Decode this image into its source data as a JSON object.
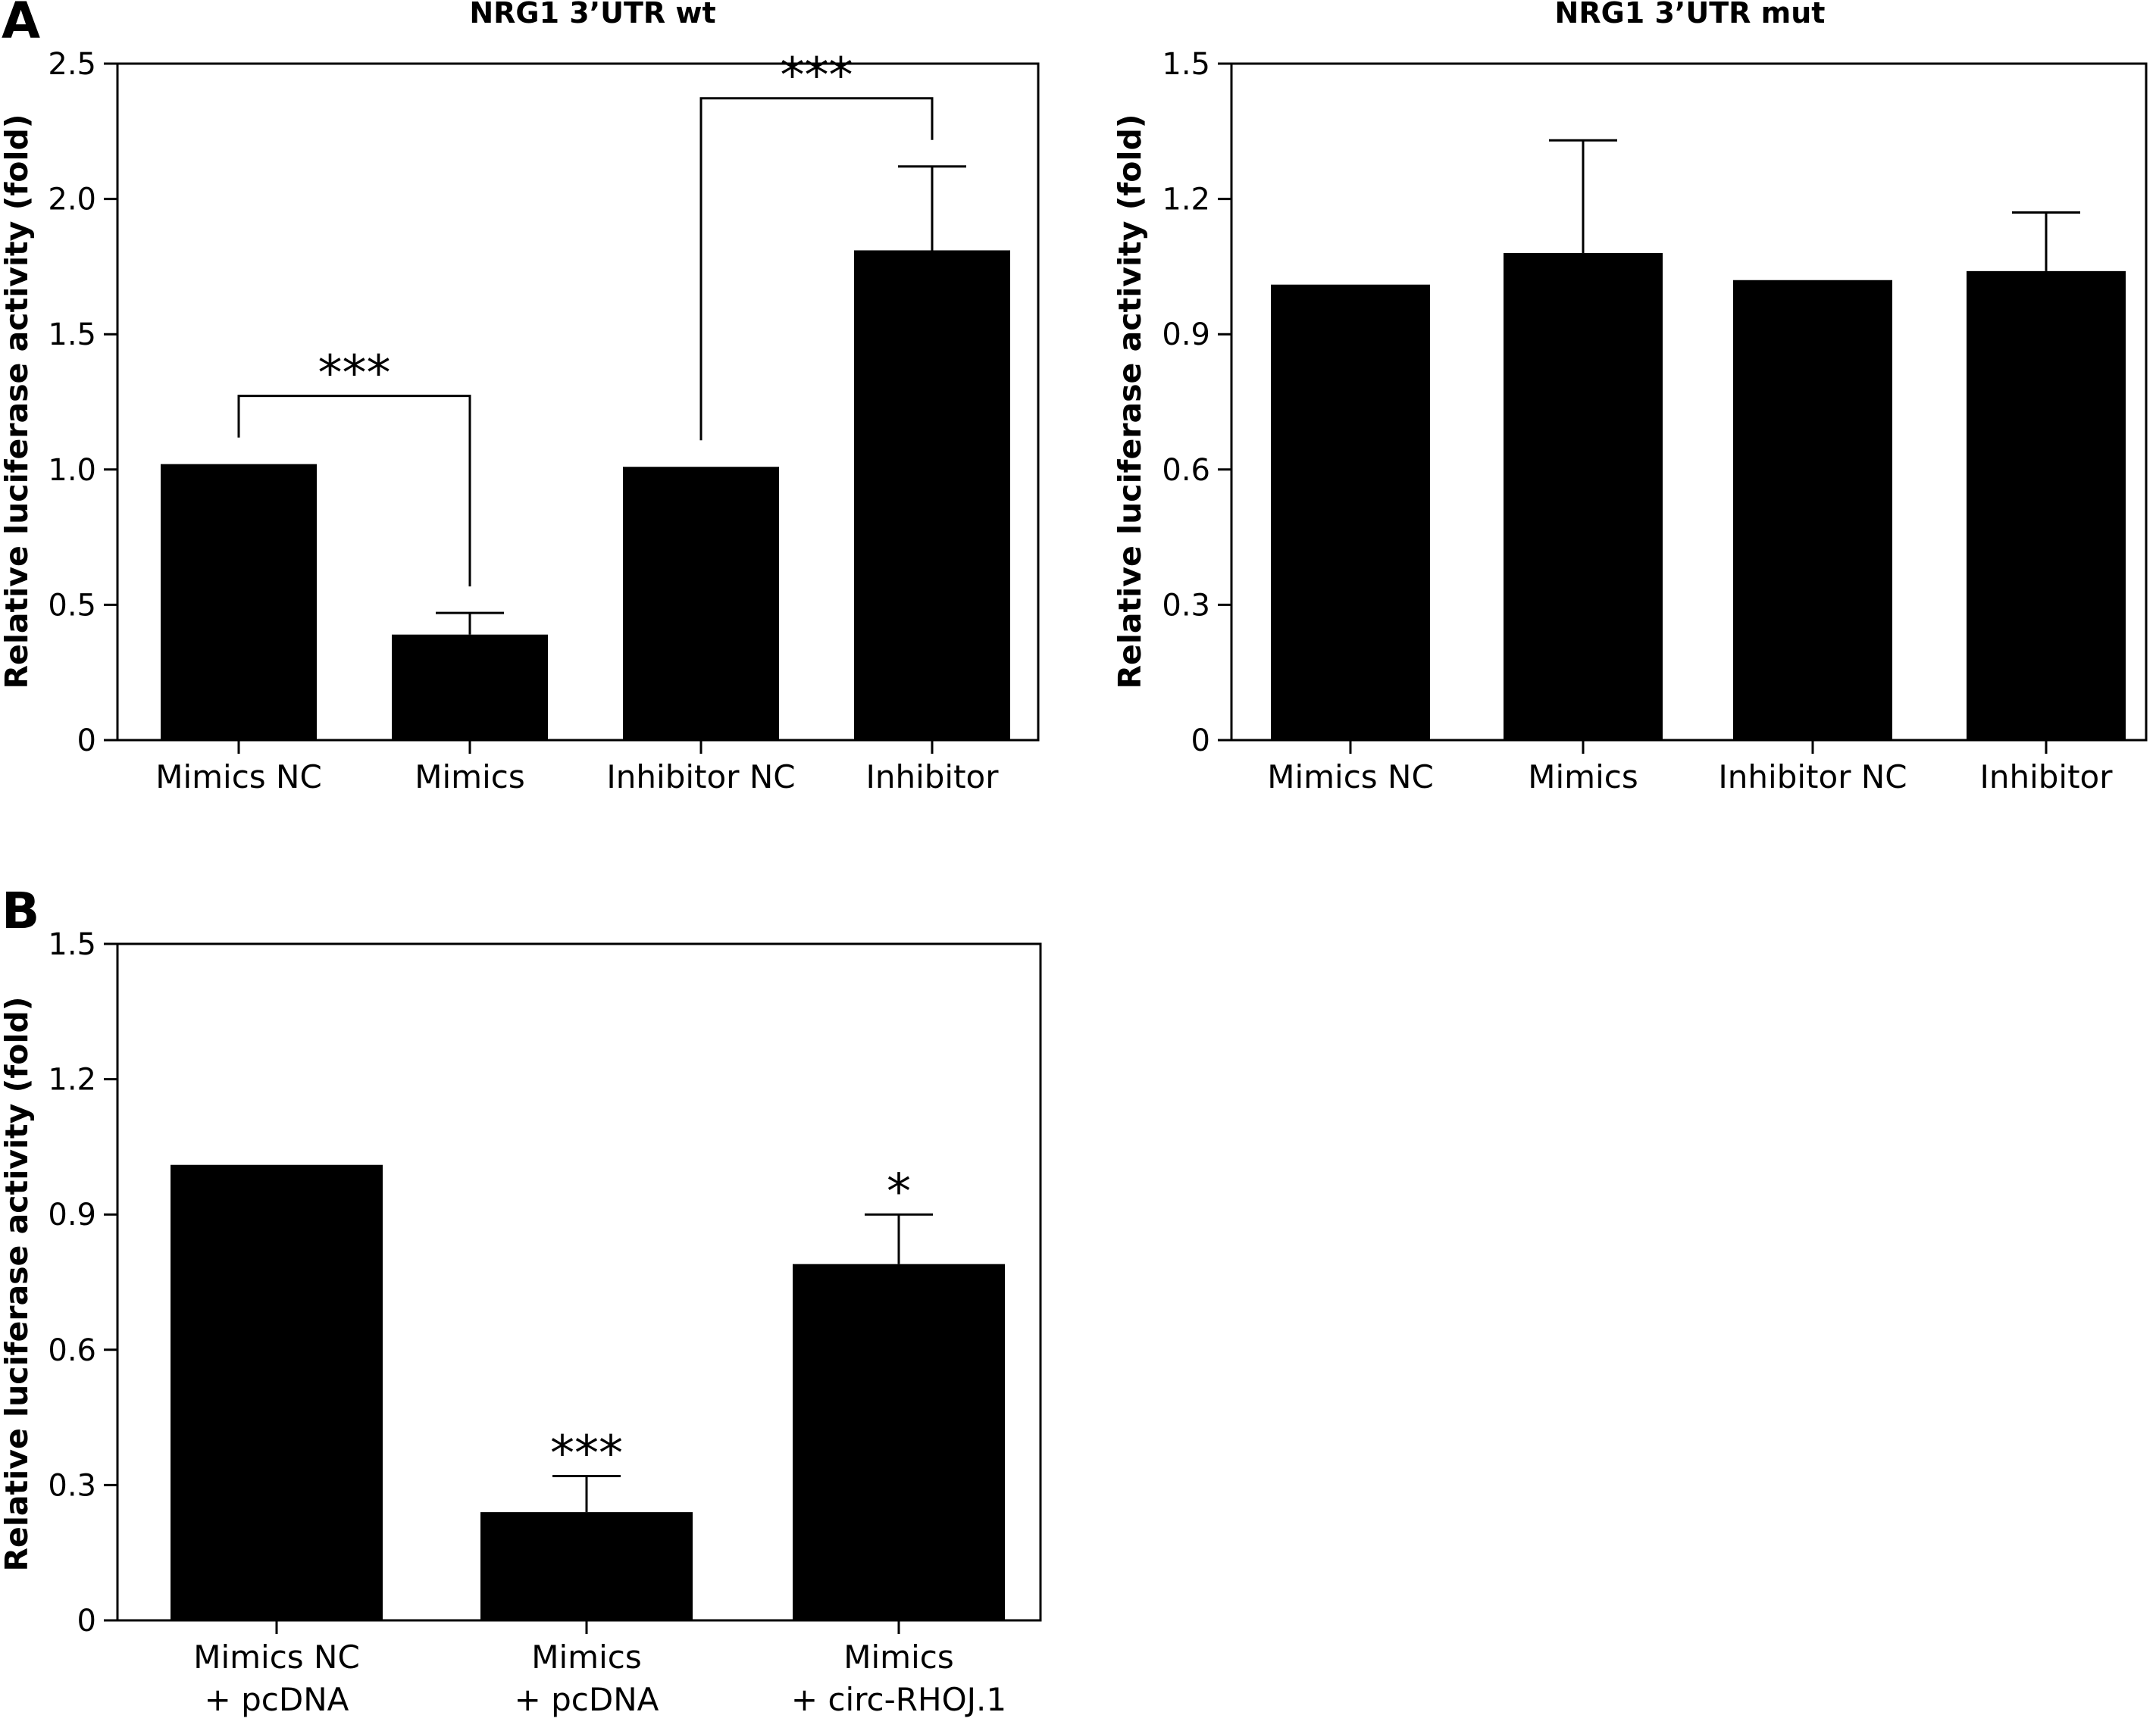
{
  "panel_letters": {
    "a": "A",
    "b": "B"
  },
  "chart_data": [
    {
      "type": "bar",
      "title": "NRG1 3’UTR wt",
      "xlabel": "",
      "ylabel": "Relative luciferase activity (fold)",
      "ylim": [
        0,
        2.5
      ],
      "yticks": [
        "0",
        "0.5",
        "1.0",
        "1.5",
        "2.0",
        "2.5"
      ],
      "ytick_values": [
        0,
        0.5,
        1.0,
        1.5,
        2.0,
        2.5
      ],
      "categories": [
        [
          "Mimics NC"
        ],
        [
          "Mimics"
        ],
        [
          "Inhibitor NC"
        ],
        [
          "Inhibitor"
        ]
      ],
      "values": [
        1.02,
        0.39,
        1.01,
        1.81
      ],
      "errors": [
        0,
        0.08,
        0,
        0.31
      ],
      "significance": [
        {
          "from": 0,
          "to": 1,
          "label": "***"
        },
        {
          "from": 2,
          "to": 3,
          "label": "***"
        }
      ],
      "grid": false,
      "color": "#000000"
    },
    {
      "type": "bar",
      "title": "NRG1 3’UTR mut",
      "xlabel": "",
      "ylabel": "Relative luciferase activity (fold)",
      "ylim": [
        0,
        1.5
      ],
      "yticks": [
        "0",
        "0.3",
        "0.6",
        "0.9",
        "1.2",
        "1.5"
      ],
      "ytick_values": [
        0,
        0.3,
        0.6,
        0.9,
        1.2,
        1.5
      ],
      "categories": [
        [
          "Mimics NC"
        ],
        [
          "Mimics"
        ],
        [
          "Inhibitor NC"
        ],
        [
          "Inhibitor"
        ]
      ],
      "values": [
        1.01,
        1.08,
        1.02,
        1.04
      ],
      "errors": [
        0,
        0.25,
        0,
        0.13
      ],
      "significance": [],
      "grid": false,
      "color": "#000000"
    },
    {
      "type": "bar",
      "title": "",
      "xlabel": "",
      "ylabel": "Relative luciferase activity (fold)",
      "ylim": [
        0,
        1.5
      ],
      "yticks": [
        "0",
        "0.3",
        "0.6",
        "0.9",
        "1.2",
        "1.5"
      ],
      "ytick_values": [
        0,
        0.3,
        0.6,
        0.9,
        1.2,
        1.5
      ],
      "categories": [
        [
          "Mimics NC",
          "+ pcDNA"
        ],
        [
          "Mimics",
          "+  pcDNA"
        ],
        [
          "Mimics",
          "+ circ-RHOJ.1"
        ]
      ],
      "values": [
        1.01,
        0.24,
        0.79
      ],
      "errors": [
        0,
        0.08,
        0.11
      ],
      "bar_marks": [
        "",
        "***",
        "*"
      ],
      "significance": [],
      "grid": false,
      "color": "#000000"
    }
  ]
}
